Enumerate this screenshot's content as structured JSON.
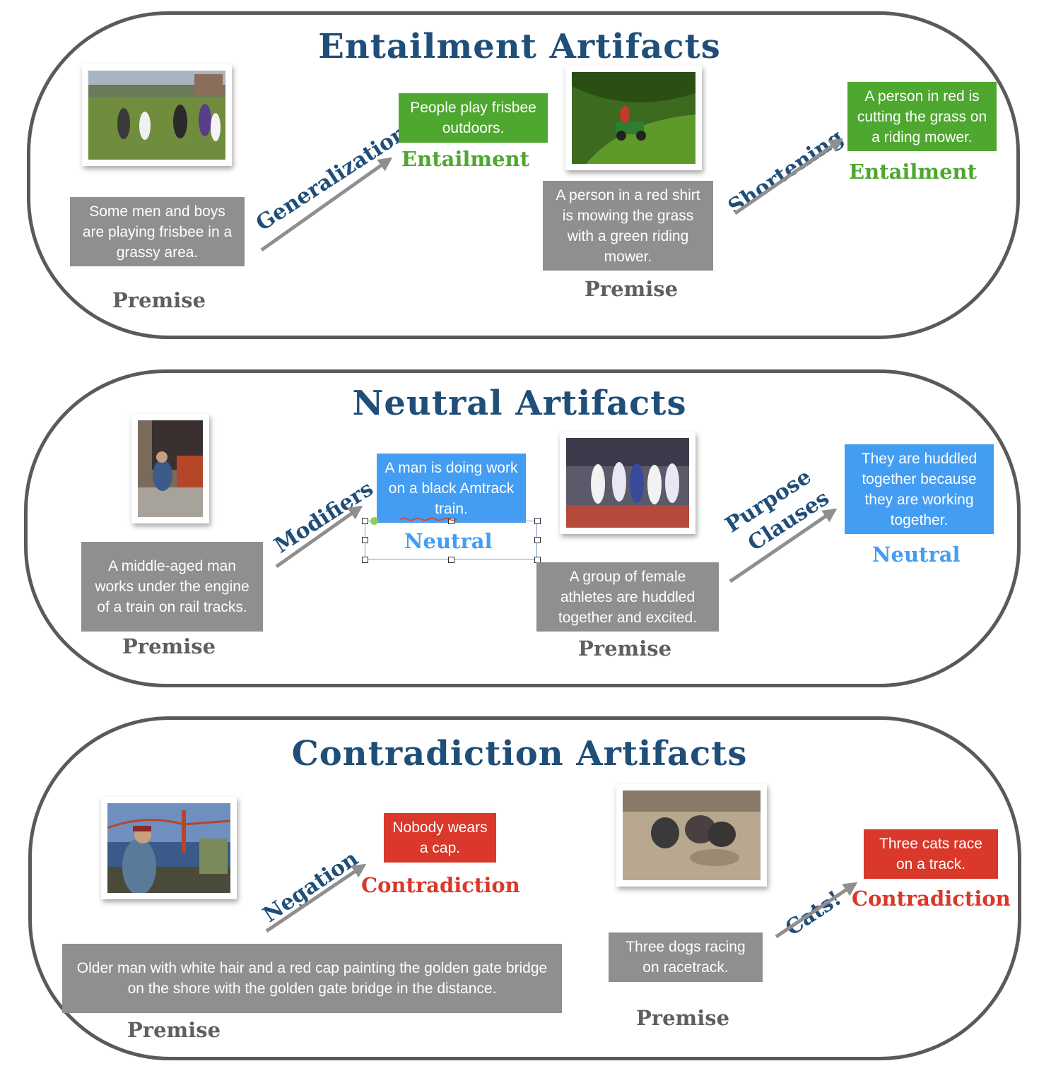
{
  "entailment": {
    "title": "Entailment Artifacts",
    "ex1": {
      "premise_text": "Some men and boys are playing frisbee in a grassy area.",
      "premise_label": "Premise",
      "artifact": "Generalization",
      "hypothesis": "People play frisbee outdoors.",
      "label": "Entailment"
    },
    "ex2": {
      "premise_text": "A person in a red shirt is mowing the grass with a green riding mower.",
      "premise_label": "Premise",
      "artifact": "Shortening",
      "hypothesis": "A person in red is cutting the grass on a riding mower.",
      "label": "Entailment"
    }
  },
  "neutral": {
    "title": "Neutral Artifacts",
    "ex1": {
      "premise_text": "A middle-aged man works under the engine of a train on rail tracks.",
      "premise_label": "Premise",
      "artifact": "Modifiers",
      "hypothesis": "A man is doing work on a black Amtrack train.",
      "label": "Neutral"
    },
    "ex2": {
      "premise_text": "A group of female athletes are huddled together and excited.",
      "premise_label": "Premise",
      "artifact_line1": "Purpose",
      "artifact_line2": "Clauses",
      "hypothesis": "They are huddled together because they are working together.",
      "label": "Neutral"
    }
  },
  "contradiction": {
    "title": "Contradiction Artifacts",
    "ex1": {
      "premise_text": "Older man with white hair and a red cap painting the golden gate bridge on the shore with the golden gate bridge in the distance.",
      "premise_label": "Premise",
      "artifact": "Negation",
      "hypothesis": "Nobody wears a cap.",
      "label": "Contradiction"
    },
    "ex2": {
      "premise_text": "Three dogs racing on racetrack.",
      "premise_label": "Premise",
      "artifact": "Cats!",
      "hypothesis": "Three cats race on a track.",
      "label": "Contradiction"
    }
  },
  "colors": {
    "title": "#1f4e79",
    "entailment": "#4ea72e",
    "neutral": "#439df2",
    "contradiction": "#d9382a",
    "premise_box": "#8f8f8f",
    "arrow": "#8f8f8f"
  }
}
